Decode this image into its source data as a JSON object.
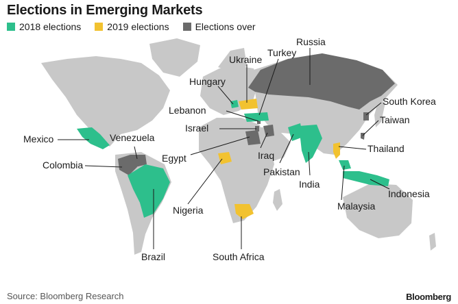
{
  "header": {
    "title": "Elections in Emerging Markets"
  },
  "legend": {
    "items": [
      {
        "label": "2018 elections",
        "color": "#2dbf8c"
      },
      {
        "label": "2019 elections",
        "color": "#f2c230"
      },
      {
        "label": "Elections over",
        "color": "#6b6b6b"
      }
    ]
  },
  "map": {
    "land_color": "#c8c8c8",
    "countries": {
      "russia": "Russia",
      "ukraine": "Ukraine",
      "turkey": "Turkey",
      "hungary": "Hungary",
      "south_korea": "South Korea",
      "lebanon": "Lebanon",
      "taiwan": "Taiwan",
      "israel": "Israel",
      "mexico": "Mexico",
      "venezuela": "Venezuela",
      "thailand": "Thailand",
      "egypt": "Egypt",
      "iraq": "Iraq",
      "colombia": "Colombia",
      "pakistan": "Pakistan",
      "india": "India",
      "indonesia": "Indonesia",
      "nigeria": "Nigeria",
      "malaysia": "Malaysia",
      "brazil": "Brazil",
      "south_africa": "South Africa"
    }
  },
  "footer": {
    "source": "Source: Bloomberg Research",
    "brand": "Bloomberg"
  }
}
